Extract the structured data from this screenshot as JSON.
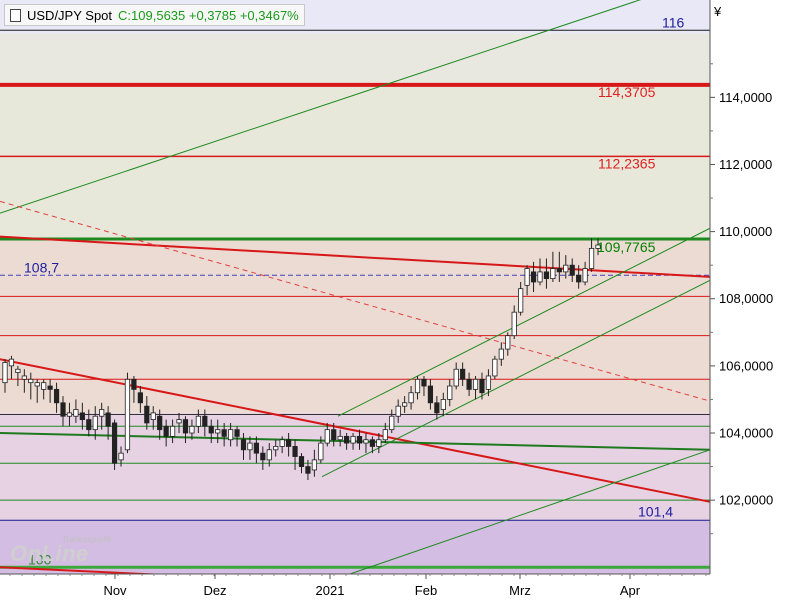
{
  "header": {
    "symbol": "USD/JPY Spot",
    "quote": "C:109,5635 +0,3785 +0,3467%"
  },
  "currency_symbol": "¥",
  "watermark": {
    "top": "Tradesignal®",
    "bottom": "OnLine"
  },
  "colors": {
    "up_green": "#1a9a1a",
    "level_red": "#e02020",
    "trend_green": "#008000",
    "label_blue": "#2020a0"
  },
  "chart_data": {
    "type": "candlestick",
    "title": "USD/JPY Spot",
    "ylim": [
      99.8,
      116.9
    ],
    "y_ticks": [
      {
        "v": 102,
        "label": "102,0000"
      },
      {
        "v": 104,
        "label": "104,0000"
      },
      {
        "v": 106,
        "label": "106,0000"
      },
      {
        "v": 108,
        "label": "108,0000"
      },
      {
        "v": 110,
        "label": "110,0000"
      },
      {
        "v": 112,
        "label": "112,0000"
      },
      {
        "v": 114,
        "label": "114,0000"
      }
    ],
    "x_ticks": [
      "Nov",
      "Dez",
      "2021",
      "Feb",
      "Mrz",
      "Apr"
    ],
    "bands": [
      {
        "from": 115.9,
        "to": 116.9,
        "color": "#e8e8f6"
      },
      {
        "from": 114.37,
        "to": 115.9,
        "color": "#e8e8e0"
      },
      {
        "from": 109.78,
        "to": 114.37,
        "color": "#e8e8da"
      },
      {
        "from": 104.6,
        "to": 109.78,
        "color": "#ecdbd3"
      },
      {
        "from": 101.4,
        "to": 104.6,
        "color": "#e6d2e3"
      },
      {
        "from": 99.8,
        "to": 101.4,
        "color": "#d4bde3"
      }
    ],
    "levels": [
      {
        "v": 115.9,
        "label": "116",
        "color": "#2020a0"
      },
      {
        "v": 114.3705,
        "label": "114,3705",
        "color": "#e02020"
      },
      {
        "v": 112.2365,
        "label": "112,2365",
        "color": "#e02020"
      },
      {
        "v": 109.7765,
        "label": "109,7765",
        "color": "#008000"
      },
      {
        "v": 108.7,
        "label": "108,7",
        "color": "#2020a0"
      },
      {
        "v": 101.4,
        "label": "101,4",
        "color": "#2020a0"
      },
      {
        "v": 100.0,
        "label": "100",
        "color": "#2a8a2a"
      }
    ],
    "candles": [
      [
        105.5,
        106.1,
        105.2,
        106.2
      ],
      [
        106.0,
        106.2,
        105.6,
        106.3
      ],
      [
        105.8,
        105.9,
        105.4,
        106.0
      ],
      [
        105.6,
        105.7,
        105.2,
        105.9
      ],
      [
        105.5,
        105.6,
        105.0,
        105.8
      ],
      [
        105.4,
        105.5,
        104.9,
        105.6
      ],
      [
        105.3,
        105.5,
        105.0,
        105.6
      ],
      [
        105.4,
        105.3,
        104.9,
        105.6
      ],
      [
        105.3,
        104.9,
        104.6,
        105.5
      ],
      [
        104.9,
        104.5,
        104.2,
        105.1
      ],
      [
        104.5,
        104.6,
        104.2,
        104.9
      ],
      [
        104.5,
        104.7,
        104.3,
        105.0
      ],
      [
        104.6,
        104.4,
        104.1,
        104.9
      ],
      [
        104.4,
        104.1,
        103.9,
        104.7
      ],
      [
        104.1,
        104.5,
        103.8,
        104.8
      ],
      [
        104.5,
        104.7,
        104.1,
        104.9
      ],
      [
        104.6,
        104.2,
        103.8,
        104.8
      ],
      [
        104.3,
        103.1,
        102.9,
        104.4
      ],
      [
        103.2,
        103.4,
        103.0,
        103.6
      ],
      [
        103.5,
        105.6,
        103.4,
        105.8
      ],
      [
        105.6,
        105.3,
        104.9,
        105.7
      ],
      [
        105.2,
        104.9,
        104.6,
        105.4
      ],
      [
        104.8,
        104.3,
        104.1,
        105.1
      ],
      [
        104.4,
        104.6,
        104.1,
        104.8
      ],
      [
        104.5,
        104.1,
        103.8,
        104.7
      ],
      [
        104.2,
        103.9,
        103.6,
        104.4
      ],
      [
        103.9,
        104.2,
        103.7,
        104.4
      ],
      [
        104.3,
        104.4,
        104.0,
        104.6
      ],
      [
        104.4,
        104.0,
        103.7,
        104.5
      ],
      [
        104.0,
        104.2,
        103.8,
        104.4
      ],
      [
        104.2,
        104.5,
        104.0,
        104.7
      ],
      [
        104.5,
        104.2,
        103.9,
        104.7
      ],
      [
        104.2,
        104.0,
        103.7,
        104.4
      ],
      [
        104.0,
        104.1,
        103.7,
        104.4
      ],
      [
        104.1,
        103.9,
        103.6,
        104.3
      ],
      [
        103.8,
        104.1,
        103.6,
        104.3
      ],
      [
        104.1,
        103.9,
        103.6,
        104.2
      ],
      [
        103.8,
        103.5,
        103.2,
        104.0
      ],
      [
        103.5,
        103.7,
        103.2,
        103.9
      ],
      [
        103.7,
        103.4,
        103.1,
        103.9
      ],
      [
        103.4,
        103.2,
        102.9,
        103.6
      ],
      [
        103.2,
        103.5,
        103.0,
        103.7
      ],
      [
        103.5,
        103.6,
        103.3,
        103.8
      ],
      [
        103.6,
        103.8,
        103.4,
        103.9
      ],
      [
        103.8,
        103.6,
        103.3,
        104.0
      ],
      [
        103.6,
        103.3,
        102.9,
        103.8
      ],
      [
        103.3,
        103.0,
        102.8,
        103.4
      ],
      [
        103.0,
        102.8,
        102.6,
        103.2
      ],
      [
        102.9,
        103.2,
        102.7,
        103.5
      ],
      [
        103.2,
        103.7,
        103.1,
        103.9
      ],
      [
        103.7,
        104.1,
        103.6,
        104.3
      ],
      [
        104.1,
        103.8,
        103.6,
        104.3
      ],
      [
        103.8,
        103.9,
        103.6,
        104.1
      ],
      [
        103.9,
        103.7,
        103.5,
        104.0
      ],
      [
        103.7,
        103.9,
        103.5,
        104.0
      ],
      [
        103.9,
        103.7,
        103.5,
        104.1
      ],
      [
        103.7,
        103.8,
        103.4,
        104.0
      ],
      [
        103.8,
        103.6,
        103.4,
        103.9
      ],
      [
        103.6,
        103.8,
        103.4,
        104.0
      ],
      [
        103.8,
        104.1,
        103.7,
        104.3
      ],
      [
        104.1,
        104.5,
        104.0,
        104.7
      ],
      [
        104.5,
        104.8,
        104.3,
        105.0
      ],
      [
        104.8,
        104.9,
        104.6,
        105.1
      ],
      [
        104.9,
        105.2,
        104.7,
        105.4
      ],
      [
        105.2,
        105.6,
        105.0,
        105.7
      ],
      [
        105.6,
        105.4,
        105.1,
        105.7
      ],
      [
        105.4,
        104.9,
        104.7,
        105.6
      ],
      [
        104.9,
        104.6,
        104.4,
        105.1
      ],
      [
        104.7,
        105.0,
        104.5,
        105.2
      ],
      [
        105.0,
        105.4,
        104.8,
        105.6
      ],
      [
        105.4,
        105.9,
        105.3,
        106.1
      ],
      [
        105.9,
        105.6,
        105.4,
        106.1
      ],
      [
        105.6,
        105.3,
        105.1,
        105.8
      ],
      [
        105.3,
        105.6,
        105.0,
        105.7
      ],
      [
        105.6,
        105.2,
        105.0,
        105.8
      ],
      [
        105.3,
        105.7,
        105.1,
        105.9
      ],
      [
        105.7,
        106.2,
        105.6,
        106.3
      ],
      [
        106.2,
        106.5,
        106.0,
        106.7
      ],
      [
        106.5,
        106.9,
        106.3,
        107.0
      ],
      [
        106.9,
        107.6,
        106.8,
        107.8
      ],
      [
        107.6,
        108.3,
        107.5,
        108.5
      ],
      [
        108.4,
        108.9,
        108.1,
        109.0
      ],
      [
        108.8,
        108.5,
        108.2,
        109.1
      ],
      [
        108.5,
        108.8,
        108.4,
        109.2
      ],
      [
        108.8,
        108.6,
        108.3,
        109.2
      ],
      [
        108.6,
        108.9,
        108.5,
        109.4
      ],
      [
        108.9,
        108.8,
        108.5,
        109.4
      ],
      [
        108.8,
        109.0,
        108.6,
        109.3
      ],
      [
        109.0,
        108.7,
        108.5,
        109.2
      ],
      [
        108.7,
        108.5,
        108.3,
        109.0
      ],
      [
        108.5,
        108.9,
        108.4,
        109.1
      ],
      [
        108.9,
        109.5,
        108.8,
        109.8
      ],
      [
        109.5,
        109.6,
        109.3,
        109.8
      ]
    ]
  }
}
